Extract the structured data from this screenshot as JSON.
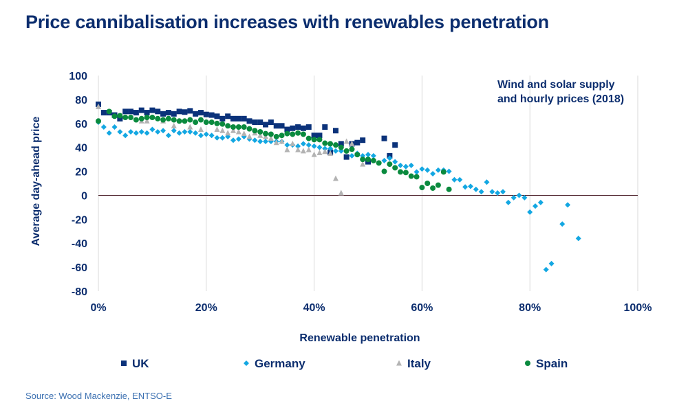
{
  "title": "Price cannibalisation increases with renewables penetration",
  "source": "Source: Wood Mackenzie, ENTSO-E",
  "chart_data": {
    "type": "scatter",
    "xlabel": "Renewable penetration",
    "ylabel": "Average day-ahead price",
    "annotation": [
      "Wind and solar supply",
      "and hourly prices (2018)"
    ],
    "xlim": [
      0,
      100
    ],
    "ylim": [
      -80,
      100
    ],
    "x_ticks": [
      "0%",
      "20%",
      "40%",
      "60%",
      "80%",
      "100%"
    ],
    "y_ticks": [
      "100",
      "80",
      "60",
      "40",
      "20",
      "0",
      "-20",
      "-40",
      "-60",
      "-80"
    ],
    "grid": "vertical",
    "legend": "bottom",
    "series": [
      {
        "name": "UK",
        "marker": "square",
        "color": "#0b327a",
        "x": [
          0,
          1,
          2,
          3,
          4,
          5,
          6,
          7,
          8,
          9,
          10,
          11,
          12,
          13,
          14,
          15,
          16,
          17,
          18,
          19,
          20,
          21,
          22,
          23,
          24,
          25,
          26,
          27,
          28,
          29,
          30,
          31,
          32,
          33,
          34,
          35,
          36,
          37,
          38,
          39,
          40,
          41,
          42,
          43,
          44,
          45,
          46,
          47,
          48,
          49,
          50,
          53,
          54,
          55
        ],
        "y": [
          76,
          69,
          69,
          67,
          64,
          70,
          70,
          69,
          71,
          69,
          71,
          70,
          68,
          69,
          68,
          70,
          69.5,
          70.5,
          68,
          69,
          67.5,
          67,
          66,
          64,
          66,
          64,
          64,
          64,
          62,
          61,
          61,
          59,
          61,
          58,
          58,
          55,
          56,
          57,
          56,
          57,
          50,
          50,
          57,
          36,
          54,
          43,
          32,
          43,
          44,
          46,
          28,
          47.5,
          33,
          42
        ]
      },
      {
        "name": "Germany",
        "marker": "diamond",
        "color": "#13a7e2",
        "x": [
          0,
          1,
          2,
          3,
          4,
          5,
          6,
          7,
          8,
          9,
          10,
          11,
          12,
          13,
          14,
          15,
          16,
          17,
          18,
          19,
          20,
          21,
          22,
          23,
          24,
          25,
          26,
          27,
          28,
          29,
          30,
          31,
          32,
          33,
          34,
          35,
          36,
          37,
          38,
          39,
          40,
          41,
          42,
          43,
          44,
          45,
          46,
          47,
          48,
          49,
          50,
          51,
          53,
          54,
          55,
          56,
          57,
          58,
          59,
          60,
          61,
          62,
          63,
          64,
          65,
          66,
          67,
          68,
          69,
          70,
          71,
          72,
          73,
          74,
          75,
          76,
          77,
          78,
          79,
          80,
          81,
          82,
          83,
          84,
          86,
          87,
          89
        ],
        "y": [
          61,
          57,
          52,
          57,
          53,
          50,
          53,
          52,
          53,
          52,
          55,
          53,
          54,
          50,
          54,
          52,
          53,
          53,
          52,
          50,
          51,
          50,
          48,
          48,
          49,
          46,
          47,
          49,
          47,
          46,
          45,
          45,
          45,
          45,
          45,
          42,
          42,
          41,
          43,
          42,
          41,
          40,
          39,
          39,
          37,
          37,
          37,
          33,
          35,
          33,
          34,
          33,
          29,
          31,
          28,
          25,
          24,
          25,
          19.5,
          22,
          21,
          18,
          21,
          21,
          20,
          13,
          13,
          7,
          7.5,
          5,
          3,
          11,
          3,
          2,
          3,
          -6,
          -2,
          0,
          -2,
          -14,
          -9,
          -6,
          -62,
          -57,
          -24,
          -8,
          -36
        ]
      },
      {
        "name": "Italy",
        "marker": "triangle",
        "color": "#b3b3b3",
        "x": [
          0,
          8,
          9,
          12,
          14,
          17,
          19,
          22,
          23,
          24,
          25,
          26,
          27,
          28,
          29,
          30,
          31,
          32,
          33,
          34,
          35,
          36,
          37,
          38,
          39,
          40,
          41,
          42,
          43,
          44,
          45,
          46,
          47,
          49
        ],
        "y": [
          74,
          62,
          62,
          62,
          58,
          57,
          55,
          55,
          54,
          52,
          54,
          53,
          51.5,
          49,
          52,
          50,
          49,
          47.5,
          44,
          45,
          38,
          43,
          38,
          37,
          38,
          34,
          35.5,
          36.5,
          35,
          14,
          2,
          45,
          43,
          26
        ]
      },
      {
        "name": "Spain",
        "marker": "circle",
        "color": "#0a8a3e",
        "x": [
          0,
          2,
          3,
          4,
          5,
          6,
          7,
          8,
          9,
          10,
          11,
          12,
          13,
          14,
          15,
          16,
          17,
          18,
          19,
          20,
          21,
          22,
          23,
          24,
          25,
          26,
          27,
          28,
          29,
          30,
          31,
          32,
          33,
          34,
          35,
          36,
          37,
          38,
          39,
          40,
          41,
          42,
          43,
          44,
          45,
          46,
          47,
          48,
          49,
          50,
          51,
          52,
          53,
          54,
          55,
          56,
          57,
          58,
          59,
          60,
          61,
          62,
          63,
          64,
          65
        ],
        "y": [
          62,
          70,
          66,
          66.5,
          65,
          65,
          63,
          64,
          65,
          65,
          64,
          63,
          64,
          63,
          62,
          62,
          63,
          61,
          63,
          61,
          61,
          60,
          59.5,
          58,
          57,
          57,
          57,
          55.5,
          54,
          53,
          51.5,
          51,
          49,
          50,
          51.5,
          51,
          52,
          51,
          47.5,
          46.5,
          46.5,
          43.5,
          43,
          42,
          40,
          37,
          38.5,
          34,
          30,
          30,
          29,
          27,
          20,
          26,
          23,
          19.5,
          19,
          16,
          15.5,
          6.5,
          10,
          6,
          8.5,
          19.5,
          5
        ]
      }
    ]
  }
}
